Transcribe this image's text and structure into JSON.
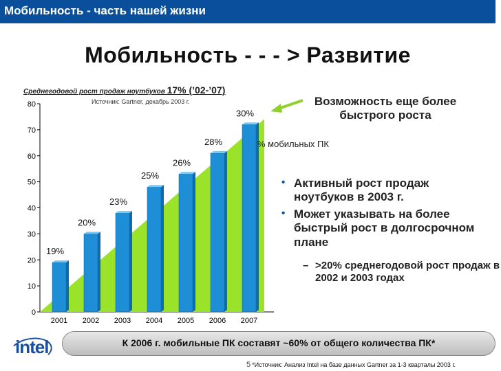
{
  "header": {
    "text": "Мобильность - часть нашей жизни"
  },
  "slide": {
    "title": "Мобильность - - - > Развитие"
  },
  "chart_caption": {
    "main": "Среднегодовой рост продаж ноутбуков",
    "cagr": "17% (’02-’07)"
  },
  "chart_source": "Источник: Gartner, декабрь 2003 г.",
  "callout": "Возможность еще более быстрого роста",
  "mobile_label": "% мобильных ПК",
  "bullets": [
    "Активный рост продаж ноутбуков в 2003 г.",
    "Может указывать на более быстрый рост в долгосрочном плане"
  ],
  "subbullet": ">20% среднегодовой рост продаж в 2002 и 2003 годах",
  "banner": "К 2006 г. мобильные ПК составят ~60% от общего количества ПК*",
  "logo": "intel",
  "footnote": {
    "page": "5",
    "text": "*Источник: Анализ Intel на базе данных Gartner за 1-3 кварталы 2003 г."
  },
  "chart_data": {
    "type": "bar",
    "categories": [
      "2001",
      "2002",
      "2003",
      "2004",
      "2005",
      "2006",
      "2007"
    ],
    "values": [
      19,
      20,
      23,
      25,
      26,
      28,
      30
    ],
    "bar_heights": [
      19,
      30,
      38,
      48,
      53,
      61,
      72
    ],
    "labels": [
      "19%",
      "20%",
      "23%",
      "25%",
      "26%",
      "28%",
      "30%"
    ],
    "yticks": [
      0,
      10,
      20,
      30,
      40,
      50,
      60,
      70,
      80
    ],
    "ylim": [
      0,
      80
    ],
    "grid": false,
    "colors": {
      "bar": "#1e8fd6",
      "bar_top": "#7cc8f5",
      "trend": "#9be32a",
      "arrow": "#8fd12a"
    }
  }
}
